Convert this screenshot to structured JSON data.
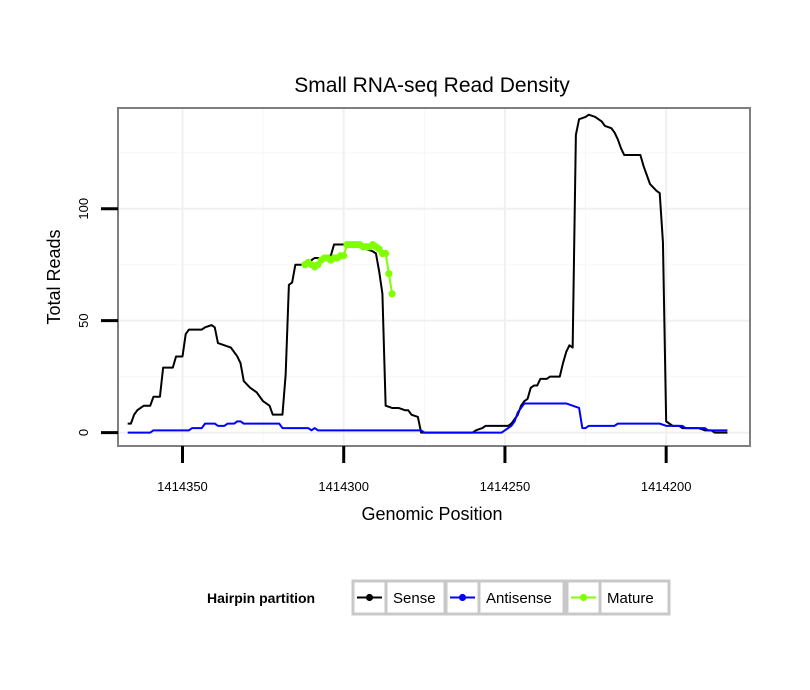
{
  "chart_data": {
    "type": "line",
    "title": "Small RNA-seq Read Density",
    "xlabel": "Genomic Position",
    "ylabel": "Total Reads",
    "x_reversed": true,
    "xlim": [
      14320,
      14124
    ],
    "ylim": [
      -6,
      145
    ],
    "x_ticks": [
      14300,
      14250,
      14200,
      14150
    ],
    "x_tick_labels": [
      "1414350",
      "1414300",
      "1414250",
      "1414200"
    ],
    "y_ticks": [
      0,
      50,
      100
    ],
    "y_tick_labels": [
      "0",
      "50",
      "100"
    ],
    "grid": true,
    "legend": {
      "title": "Hairpin partition",
      "position": "bottom"
    },
    "series": [
      {
        "name": "Sense",
        "color": "#000000",
        "marker": "line",
        "points": [
          [
            14317,
            4
          ],
          [
            14316,
            4
          ],
          [
            14315,
            8
          ],
          [
            14314,
            10
          ],
          [
            14313,
            11
          ],
          [
            14312,
            12
          ],
          [
            14310,
            12
          ],
          [
            14309,
            16
          ],
          [
            14307,
            16
          ],
          [
            14306,
            29
          ],
          [
            14303,
            29
          ],
          [
            14302,
            34
          ],
          [
            14300,
            34
          ],
          [
            14299,
            44
          ],
          [
            14298,
            46
          ],
          [
            14294,
            46
          ],
          [
            14293,
            47
          ],
          [
            14291,
            48
          ],
          [
            14290,
            47
          ],
          [
            14289,
            40
          ],
          [
            14287,
            39
          ],
          [
            14285,
            38
          ],
          [
            14283,
            34
          ],
          [
            14282,
            31
          ],
          [
            14281,
            23
          ],
          [
            14279,
            20
          ],
          [
            14277,
            18
          ],
          [
            14275,
            14
          ],
          [
            14273,
            12
          ],
          [
            14272,
            8
          ],
          [
            14269,
            8
          ],
          [
            14268,
            26
          ],
          [
            14267,
            66
          ],
          [
            14266,
            67
          ],
          [
            14265,
            75
          ],
          [
            14262,
            75
          ],
          [
            14261,
            76
          ],
          [
            14259,
            78
          ],
          [
            14256,
            78
          ],
          [
            14255,
            79
          ],
          [
            14254,
            79
          ],
          [
            14253,
            84
          ],
          [
            14248,
            84
          ],
          [
            14247,
            83
          ],
          [
            14244,
            83
          ],
          [
            14243,
            82
          ],
          [
            14241,
            81
          ],
          [
            14240,
            80
          ],
          [
            14239,
            72
          ],
          [
            14238,
            62
          ],
          [
            14237,
            12
          ],
          [
            14235,
            11
          ],
          [
            14233,
            11
          ],
          [
            14231,
            10
          ],
          [
            14230,
            10
          ],
          [
            14229,
            8
          ],
          [
            14227,
            7
          ],
          [
            14226,
            0
          ],
          [
            14210,
            0
          ],
          [
            14209,
            1
          ],
          [
            14207,
            2
          ],
          [
            14206,
            3
          ],
          [
            14199,
            3
          ],
          [
            14198,
            4
          ],
          [
            14196,
            8
          ],
          [
            14195,
            12
          ],
          [
            14194,
            14
          ],
          [
            14193,
            15
          ],
          [
            14192,
            20
          ],
          [
            14191,
            21
          ],
          [
            14190,
            21
          ],
          [
            14189,
            24
          ],
          [
            14187,
            24
          ],
          [
            14186,
            25
          ],
          [
            14183,
            25
          ],
          [
            14182,
            31
          ],
          [
            14181,
            36
          ],
          [
            14180,
            39
          ],
          [
            14179,
            38
          ],
          [
            14178,
            133
          ],
          [
            14177,
            140
          ],
          [
            14175,
            141
          ],
          [
            14174,
            142
          ],
          [
            14172,
            141
          ],
          [
            14170,
            139
          ],
          [
            14169,
            137
          ],
          [
            14167,
            136
          ],
          [
            14166,
            134
          ],
          [
            14165,
            131
          ],
          [
            14164,
            127
          ],
          [
            14163,
            124
          ],
          [
            14158,
            124
          ],
          [
            14157,
            119
          ],
          [
            14156,
            115
          ],
          [
            14155,
            111
          ],
          [
            14153,
            108
          ],
          [
            14152,
            107
          ],
          [
            14151,
            85
          ],
          [
            14150,
            5
          ],
          [
            14148,
            3
          ],
          [
            14146,
            3
          ],
          [
            14145,
            2
          ],
          [
            14140,
            2
          ],
          [
            14138,
            1
          ],
          [
            14136,
            1
          ],
          [
            14135,
            0
          ],
          [
            14131,
            0
          ]
        ]
      },
      {
        "name": "Antisense",
        "color": "#0000ff",
        "marker": "line",
        "points": [
          [
            14317,
            0
          ],
          [
            14310,
            0
          ],
          [
            14309,
            1
          ],
          [
            14298,
            1
          ],
          [
            14297,
            2
          ],
          [
            14294,
            2
          ],
          [
            14293,
            4
          ],
          [
            14290,
            4
          ],
          [
            14289,
            3
          ],
          [
            14287,
            3
          ],
          [
            14286,
            4
          ],
          [
            14284,
            4
          ],
          [
            14283,
            5
          ],
          [
            14282,
            5
          ],
          [
            14281,
            4
          ],
          [
            14270,
            4
          ],
          [
            14269,
            2
          ],
          [
            14261,
            2
          ],
          [
            14260,
            1
          ],
          [
            14259,
            2
          ],
          [
            14258,
            1
          ],
          [
            14226,
            1
          ],
          [
            14225,
            0
          ],
          [
            14201,
            0
          ],
          [
            14200,
            1
          ],
          [
            14198,
            3
          ],
          [
            14197,
            5
          ],
          [
            14196,
            9
          ],
          [
            14195,
            11
          ],
          [
            14194,
            13
          ],
          [
            14181,
            13
          ],
          [
            14179,
            12
          ],
          [
            14177,
            11
          ],
          [
            14176,
            2
          ],
          [
            14175,
            2
          ],
          [
            14174,
            3
          ],
          [
            14166,
            3
          ],
          [
            14165,
            4
          ],
          [
            14152,
            4
          ],
          [
            14150,
            3
          ],
          [
            14145,
            3
          ],
          [
            14144,
            2
          ],
          [
            14138,
            2
          ],
          [
            14137,
            1
          ],
          [
            14131,
            1
          ]
        ]
      },
      {
        "name": "Mature",
        "color": "#7fff00",
        "marker": "point",
        "points": [
          [
            14262,
            75
          ],
          [
            14261,
            76
          ],
          [
            14260,
            75
          ],
          [
            14259,
            74
          ],
          [
            14258,
            75
          ],
          [
            14257,
            77
          ],
          [
            14256,
            78
          ],
          [
            14255,
            78
          ],
          [
            14254,
            77
          ],
          [
            14253,
            78
          ],
          [
            14252,
            78
          ],
          [
            14251,
            79
          ],
          [
            14250,
            79
          ],
          [
            14249,
            84
          ],
          [
            14248,
            84
          ],
          [
            14247,
            84
          ],
          [
            14246,
            84
          ],
          [
            14245,
            84
          ],
          [
            14244,
            83
          ],
          [
            14243,
            83
          ],
          [
            14242,
            83
          ],
          [
            14241,
            84
          ],
          [
            14240,
            83
          ],
          [
            14239,
            82
          ],
          [
            14238,
            80
          ],
          [
            14237,
            80
          ],
          [
            14236,
            71
          ],
          [
            14235,
            62
          ]
        ]
      }
    ]
  }
}
